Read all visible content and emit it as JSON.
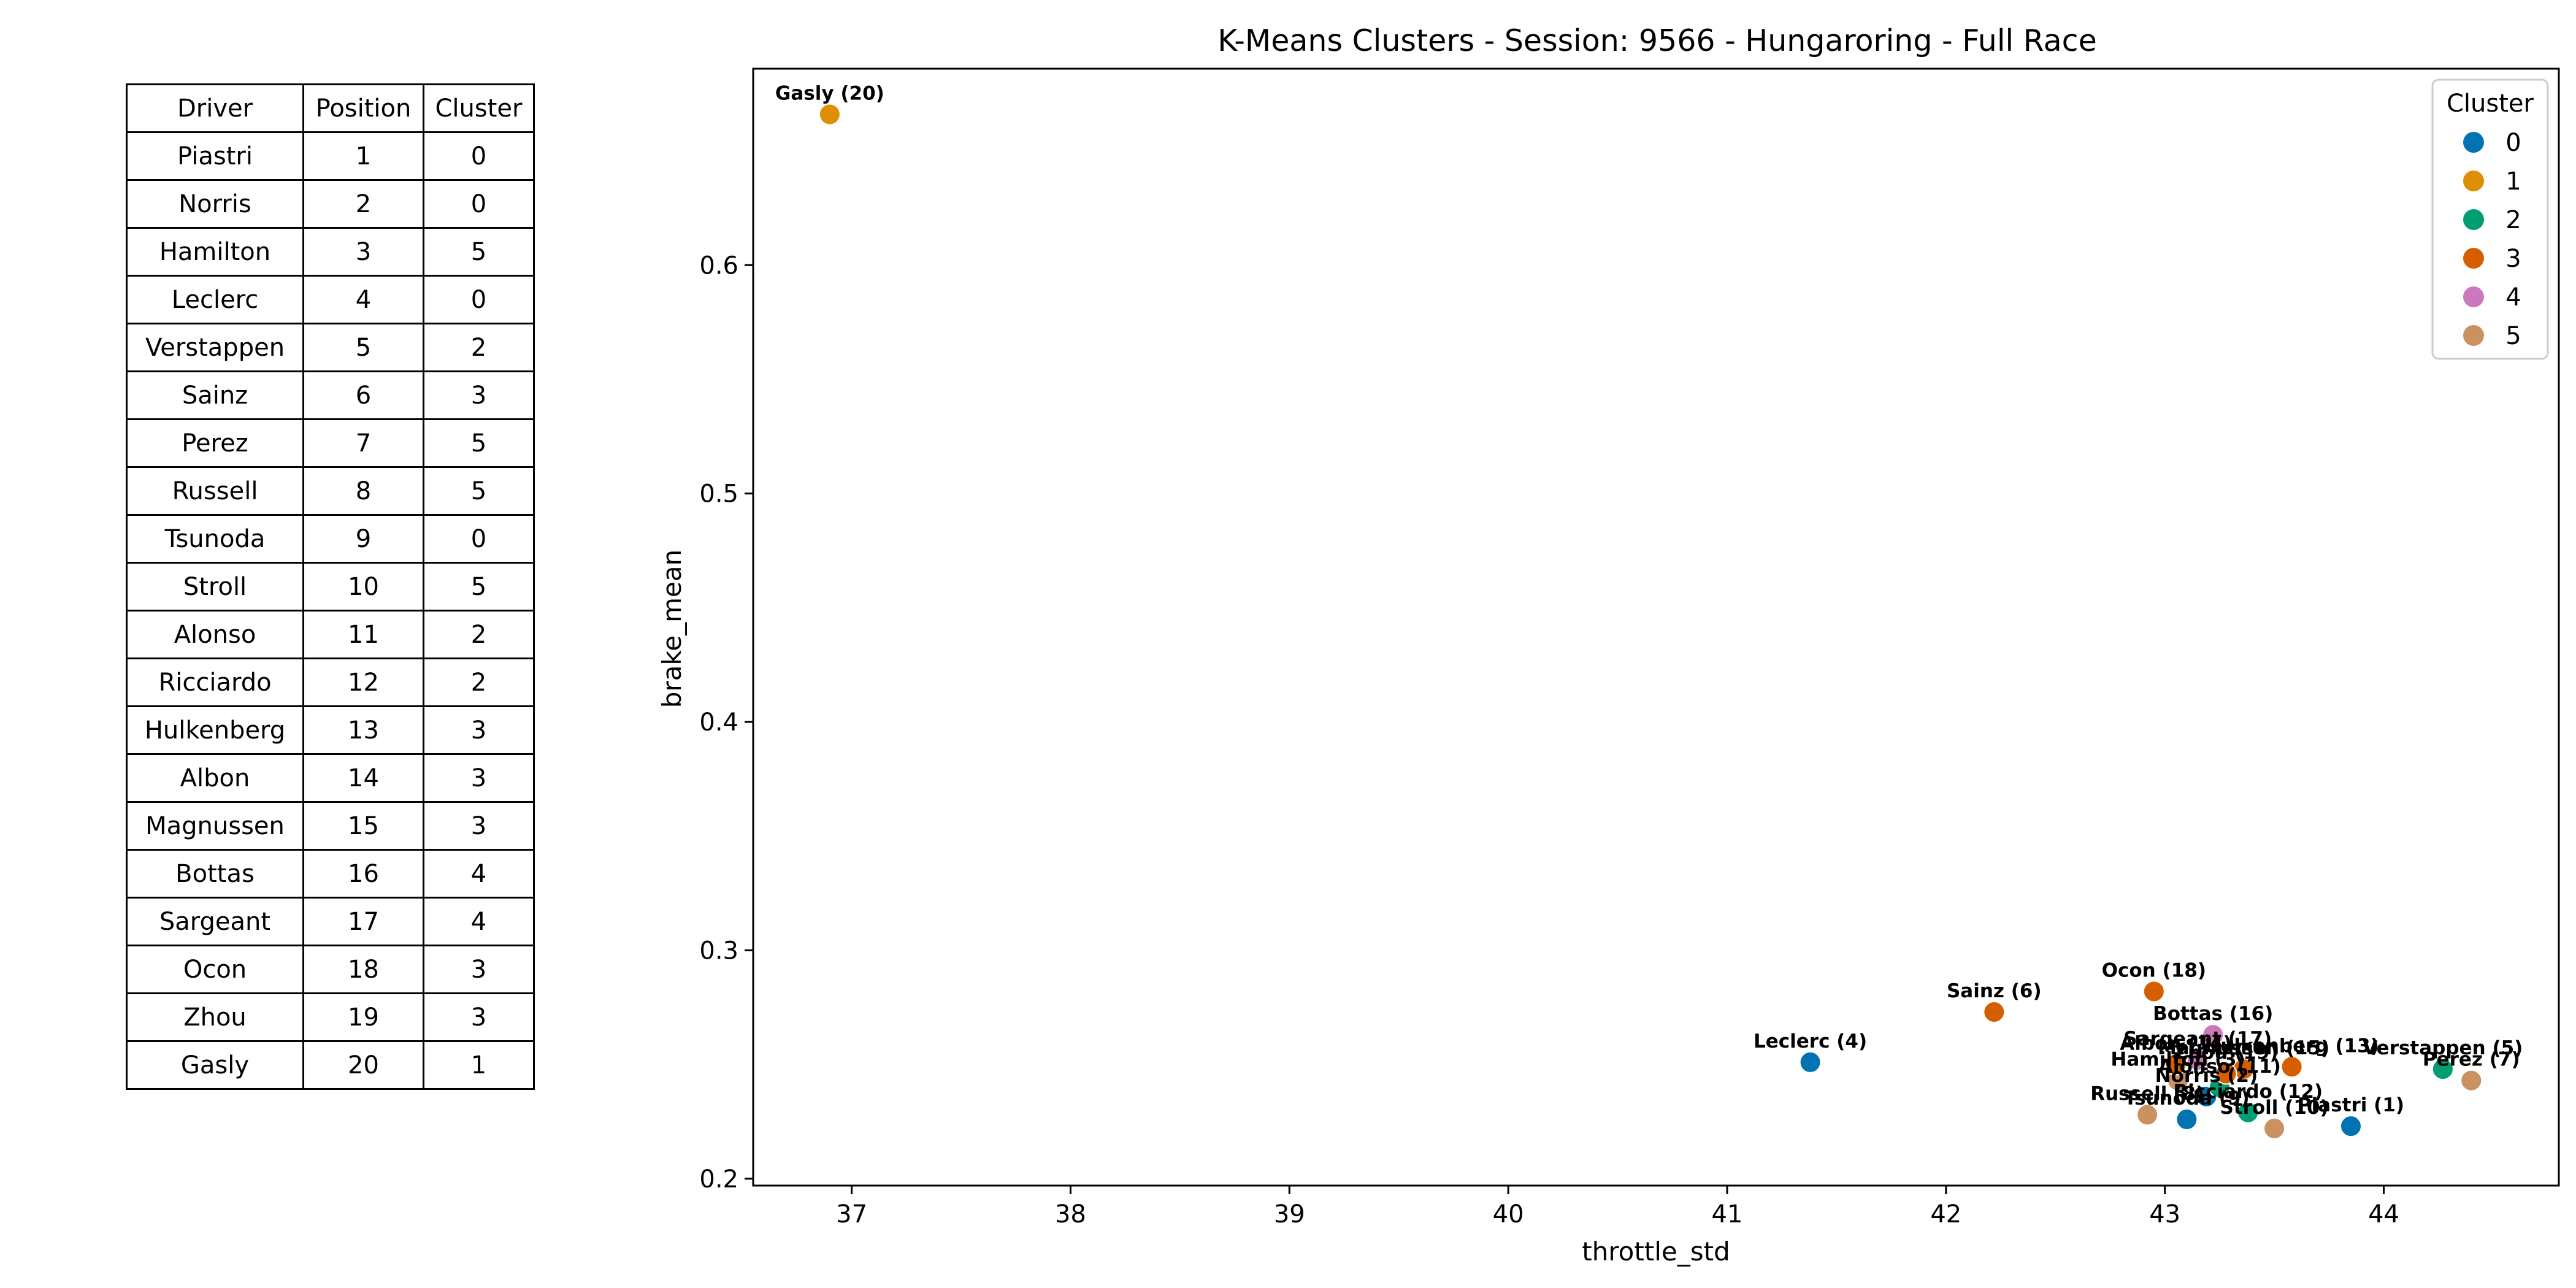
{
  "table": {
    "headers": [
      "Driver",
      "Position",
      "Cluster"
    ],
    "rows": [
      [
        "Piastri",
        "1",
        "0"
      ],
      [
        "Norris",
        "2",
        "0"
      ],
      [
        "Hamilton",
        "3",
        "5"
      ],
      [
        "Leclerc",
        "4",
        "0"
      ],
      [
        "Verstappen",
        "5",
        "2"
      ],
      [
        "Sainz",
        "6",
        "3"
      ],
      [
        "Perez",
        "7",
        "5"
      ],
      [
        "Russell",
        "8",
        "5"
      ],
      [
        "Tsunoda",
        "9",
        "0"
      ],
      [
        "Stroll",
        "10",
        "5"
      ],
      [
        "Alonso",
        "11",
        "2"
      ],
      [
        "Ricciardo",
        "12",
        "2"
      ],
      [
        "Hulkenberg",
        "13",
        "3"
      ],
      [
        "Albon",
        "14",
        "3"
      ],
      [
        "Magnussen",
        "15",
        "3"
      ],
      [
        "Bottas",
        "16",
        "4"
      ],
      [
        "Sargeant",
        "17",
        "4"
      ],
      [
        "Ocon",
        "18",
        "3"
      ],
      [
        "Zhou",
        "19",
        "3"
      ],
      [
        "Gasly",
        "20",
        "1"
      ]
    ]
  },
  "chart_data": {
    "type": "scatter",
    "title": "K-Means Clusters - Session: 9566 - Hungaroring - Full Race",
    "xlabel": "throttle_std",
    "ylabel": "brake_mean",
    "xlim": [
      36.55,
      44.8
    ],
    "ylim": [
      0.197,
      0.686
    ],
    "xticks": [
      37,
      38,
      39,
      40,
      41,
      42,
      43,
      44
    ],
    "yticks": [
      0.2,
      0.3,
      0.4,
      0.5,
      0.6
    ],
    "grid": false,
    "legend": {
      "title": "Cluster",
      "location": "upper right",
      "entries": [
        {
          "label": "0",
          "color": "#0173b2"
        },
        {
          "label": "1",
          "color": "#de8f05"
        },
        {
          "label": "2",
          "color": "#029e73"
        },
        {
          "label": "3",
          "color": "#d55e00"
        },
        {
          "label": "4",
          "color": "#cc78bc"
        },
        {
          "label": "5",
          "color": "#ca9161"
        }
      ]
    },
    "points": [
      {
        "label": "Piastri (1)",
        "x": 43.85,
        "y": 0.223,
        "cluster": 0
      },
      {
        "label": "Norris (2)",
        "x": 43.19,
        "y": 0.236,
        "cluster": 0
      },
      {
        "label": "Hamilton (3)",
        "x": 43.06,
        "y": 0.243,
        "cluster": 5
      },
      {
        "label": "Leclerc (4)",
        "x": 41.38,
        "y": 0.251,
        "cluster": 0
      },
      {
        "label": "Verstappen (5)",
        "x": 44.27,
        "y": 0.248,
        "cluster": 2
      },
      {
        "label": "Sainz (6)",
        "x": 42.22,
        "y": 0.273,
        "cluster": 3
      },
      {
        "label": "Perez (7)",
        "x": 44.4,
        "y": 0.243,
        "cluster": 5
      },
      {
        "label": "Russell (8)",
        "x": 42.92,
        "y": 0.228,
        "cluster": 5
      },
      {
        "label": "Tsunoda (9)",
        "x": 43.1,
        "y": 0.226,
        "cluster": 0
      },
      {
        "label": "Stroll (10)",
        "x": 43.5,
        "y": 0.222,
        "cluster": 5
      },
      {
        "label": "Alonso (11)",
        "x": 43.25,
        "y": 0.24,
        "cluster": 2
      },
      {
        "label": "Ricciardo (12)",
        "x": 43.38,
        "y": 0.229,
        "cluster": 2
      },
      {
        "label": "Hulkenberg (13)",
        "x": 43.58,
        "y": 0.249,
        "cluster": 3
      },
      {
        "label": "Albon (14)",
        "x": 43.05,
        "y": 0.25,
        "cluster": 3
      },
      {
        "label": "Magnussen (15)",
        "x": 43.36,
        "y": 0.248,
        "cluster": 3
      },
      {
        "label": "Bottas (16)",
        "x": 43.22,
        "y": 0.263,
        "cluster": 4
      },
      {
        "label": "Sargeant (17)",
        "x": 43.15,
        "y": 0.252,
        "cluster": 4
      },
      {
        "label": "Ocon (18)",
        "x": 42.95,
        "y": 0.282,
        "cluster": 3
      },
      {
        "label": "Zhou (19)",
        "x": 43.28,
        "y": 0.246,
        "cluster": 3
      },
      {
        "label": "Gasly (20)",
        "x": 36.9,
        "y": 0.666,
        "cluster": 1
      }
    ]
  }
}
